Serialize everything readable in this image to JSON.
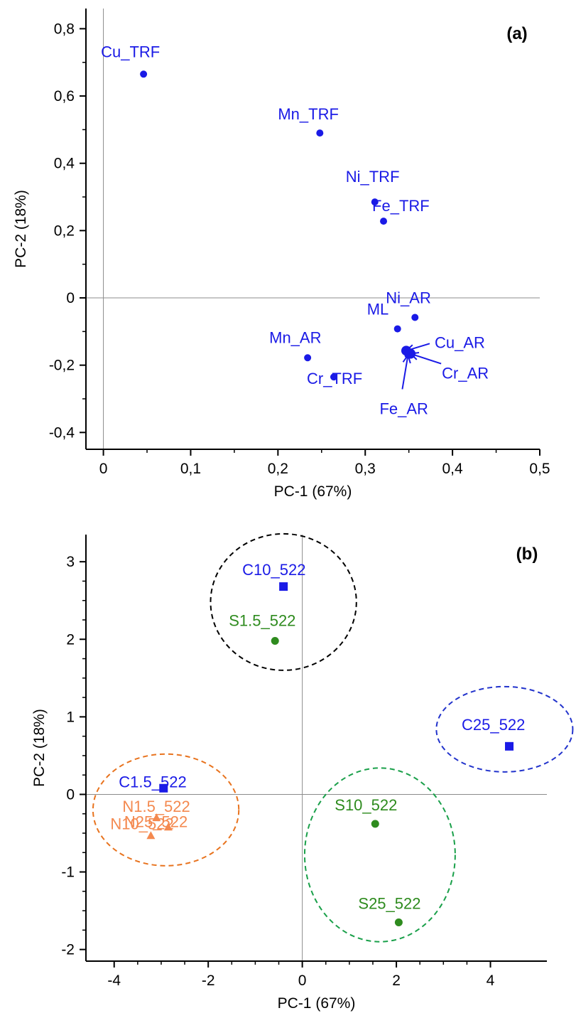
{
  "chart_data": [
    {
      "type": "scatter",
      "panel_label": "(a)",
      "xlabel": "PC-1 (67%)",
      "ylabel": "PC-2 (18%)",
      "xlim": [
        -0.02,
        0.5
      ],
      "ylim": [
        -0.45,
        0.86
      ],
      "xticks": [
        0,
        0.1,
        0.2,
        0.3,
        0.4,
        0.5
      ],
      "xtick_labels": [
        "0",
        "0,1",
        "0,2",
        "0,3",
        "0,4",
        "0,5"
      ],
      "yticks": [
        -0.4,
        -0.2,
        0,
        0.2,
        0.4,
        0.6,
        0.8
      ],
      "ytick_labels": [
        "-0,4",
        "-0,2",
        "0",
        "0,2",
        "0,4",
        "0,6",
        "0,8"
      ],
      "color": "#1a1ae6",
      "points": [
        {
          "label": "Cu_TRF",
          "x": 0.046,
          "y": 0.665
        },
        {
          "label": "Mn_TRF",
          "x": 0.248,
          "y": 0.49
        },
        {
          "label": "Ni_TRF",
          "x": 0.311,
          "y": 0.285
        },
        {
          "label": "Fe_TRF",
          "x": 0.321,
          "y": 0.228
        },
        {
          "label": "Ni_AR",
          "x": 0.357,
          "y": -0.058
        },
        {
          "label": "ML",
          "x": 0.337,
          "y": -0.092
        },
        {
          "label": "Mn_AR",
          "x": 0.234,
          "y": -0.178
        },
        {
          "label": "Cr_TRF",
          "x": 0.264,
          "y": -0.235
        },
        {
          "label": "Cu_AR",
          "x": 0.347,
          "y": -0.157
        },
        {
          "label": "Cr_AR",
          "x": 0.352,
          "y": -0.166
        },
        {
          "label": "Fe_AR",
          "x": 0.349,
          "y": -0.17
        }
      ]
    },
    {
      "type": "scatter",
      "panel_label": "(b)",
      "xlabel": "PC-1 (67%)",
      "ylabel": "PC-2 (18%)",
      "xlim": [
        -4.6,
        5.2
      ],
      "ylim": [
        -2.15,
        3.35
      ],
      "xticks": [
        -4,
        -2,
        0,
        2,
        4
      ],
      "xtick_labels": [
        "-4",
        "-2",
        "0",
        "2",
        "4"
      ],
      "yticks": [
        -2,
        -1,
        0,
        1,
        2,
        3
      ],
      "ytick_labels": [
        "-2",
        "-1",
        "0",
        "1",
        "2",
        "3"
      ],
      "colors": {
        "C": "#1a1ae6",
        "S": "#2e8b1e",
        "N": "#f4894f"
      },
      "points": [
        {
          "label": "C10_522",
          "group": "C",
          "marker": "square",
          "x": -0.4,
          "y": 2.68
        },
        {
          "label": "S1.5_522",
          "group": "S",
          "marker": "circle",
          "x": -0.58,
          "y": 1.98
        },
        {
          "label": "C25_522",
          "group": "C",
          "marker": "square",
          "x": 4.4,
          "y": 0.62
        },
        {
          "label": "C1.5_522",
          "group": "C",
          "marker": "square",
          "x": -2.95,
          "y": 0.08
        },
        {
          "label": "N1.5_522",
          "group": "N",
          "marker": "triangle",
          "x": -3.1,
          "y": -0.3
        },
        {
          "label": "N25_522",
          "group": "N",
          "marker": "triangle",
          "x": -2.85,
          "y": -0.42
        },
        {
          "label": "N10_522",
          "group": "N",
          "marker": "triangle",
          "x": -3.22,
          "y": -0.53
        },
        {
          "label": "S10_522",
          "group": "S",
          "marker": "circle",
          "x": 1.55,
          "y": -0.38
        },
        {
          "label": "S25_522",
          "group": "S",
          "marker": "circle",
          "x": 2.05,
          "y": -1.65
        }
      ],
      "clusters": [
        {
          "color": "#000000",
          "cx": -0.4,
          "cy": 2.48,
          "rx": 1.55,
          "ry": 0.88
        },
        {
          "color": "#2233cc",
          "cx": 4.3,
          "cy": 0.84,
          "rx": 1.45,
          "ry": 0.55
        },
        {
          "color": "#e8731e",
          "cx": -2.9,
          "cy": -0.2,
          "rx": 1.55,
          "ry": 0.72
        },
        {
          "color": "#1aa04a",
          "cx": 1.65,
          "cy": -0.78,
          "rx": 1.6,
          "ry": 1.12
        }
      ]
    }
  ]
}
